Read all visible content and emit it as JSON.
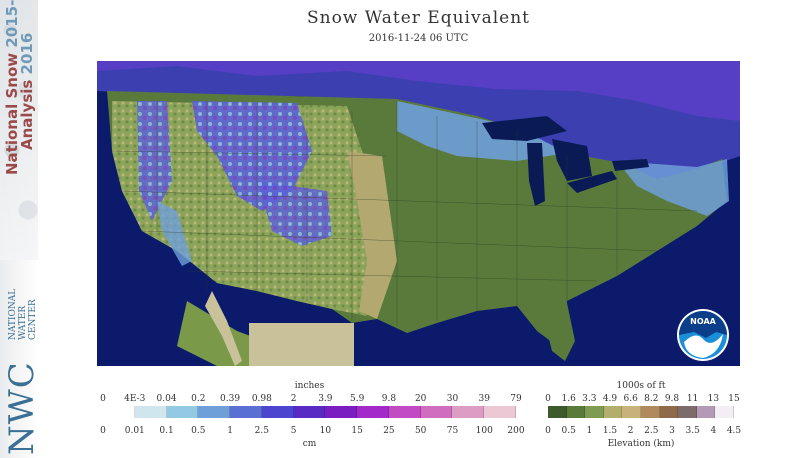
{
  "header": {
    "title": "Snow Water Equivalent",
    "timestamp": "2016-11-24 06 UTC"
  },
  "sidebar": {
    "line1_text": "National Snow",
    "line1_year": "2015-",
    "line2_text": "Analysis",
    "line2_year": "2016",
    "org_abbrev": "NWC",
    "org_line1": "NATIONAL",
    "org_line2": "WATER",
    "org_line3": "CENTER"
  },
  "logo": {
    "text": "NOAA"
  },
  "swe_legend": {
    "top_unit": "inches",
    "bottom_unit": "cm",
    "inch_ticks": [
      "0",
      "4E-3",
      "0.04",
      "0.2",
      "0.39",
      "0.98",
      "2",
      "3.9",
      "5.9",
      "9.8",
      "20",
      "30",
      "39",
      "79"
    ],
    "cm_ticks": [
      "0",
      "0.01",
      "0.1",
      "0.5",
      "1",
      "2.5",
      "5",
      "10",
      "15",
      "25",
      "50",
      "75",
      "100",
      "200"
    ],
    "colors": [
      "#ffffff",
      "#cfe6ee",
      "#93c9e2",
      "#6f9fd8",
      "#5a6fd3",
      "#4b45d0",
      "#5a2ac4",
      "#7a1ec2",
      "#a32ac9",
      "#c24bc4",
      "#d06dbf",
      "#dd9cc4",
      "#ecc8d4"
    ]
  },
  "elev_legend": {
    "top_unit": "1000s of ft",
    "bottom_unit": "Elevation (km)",
    "ft_ticks": [
      "0",
      "1.6",
      "3.3",
      "4.9",
      "6.6",
      "8.2",
      "9.8",
      "11",
      "13",
      "15"
    ],
    "km_ticks": [
      "0",
      "0.5",
      "1",
      "1.5",
      "2",
      "2.5",
      "3",
      "3.5",
      "4",
      "4.5"
    ],
    "colors": [
      "#3d5a2c",
      "#5a7a3a",
      "#7f9a52",
      "#b2ae6c",
      "#c9b27a",
      "#b08a5c",
      "#8f6a48",
      "#7d6a6a",
      "#b59ab8",
      "#f3eef3"
    ]
  },
  "map": {
    "ocean_color": "#0b1a6b",
    "lowland_color": "#5a7a3c",
    "upland_color": "#b3a870",
    "mexico_color": "#c9c19a",
    "lake_color": "#0a1a55"
  }
}
